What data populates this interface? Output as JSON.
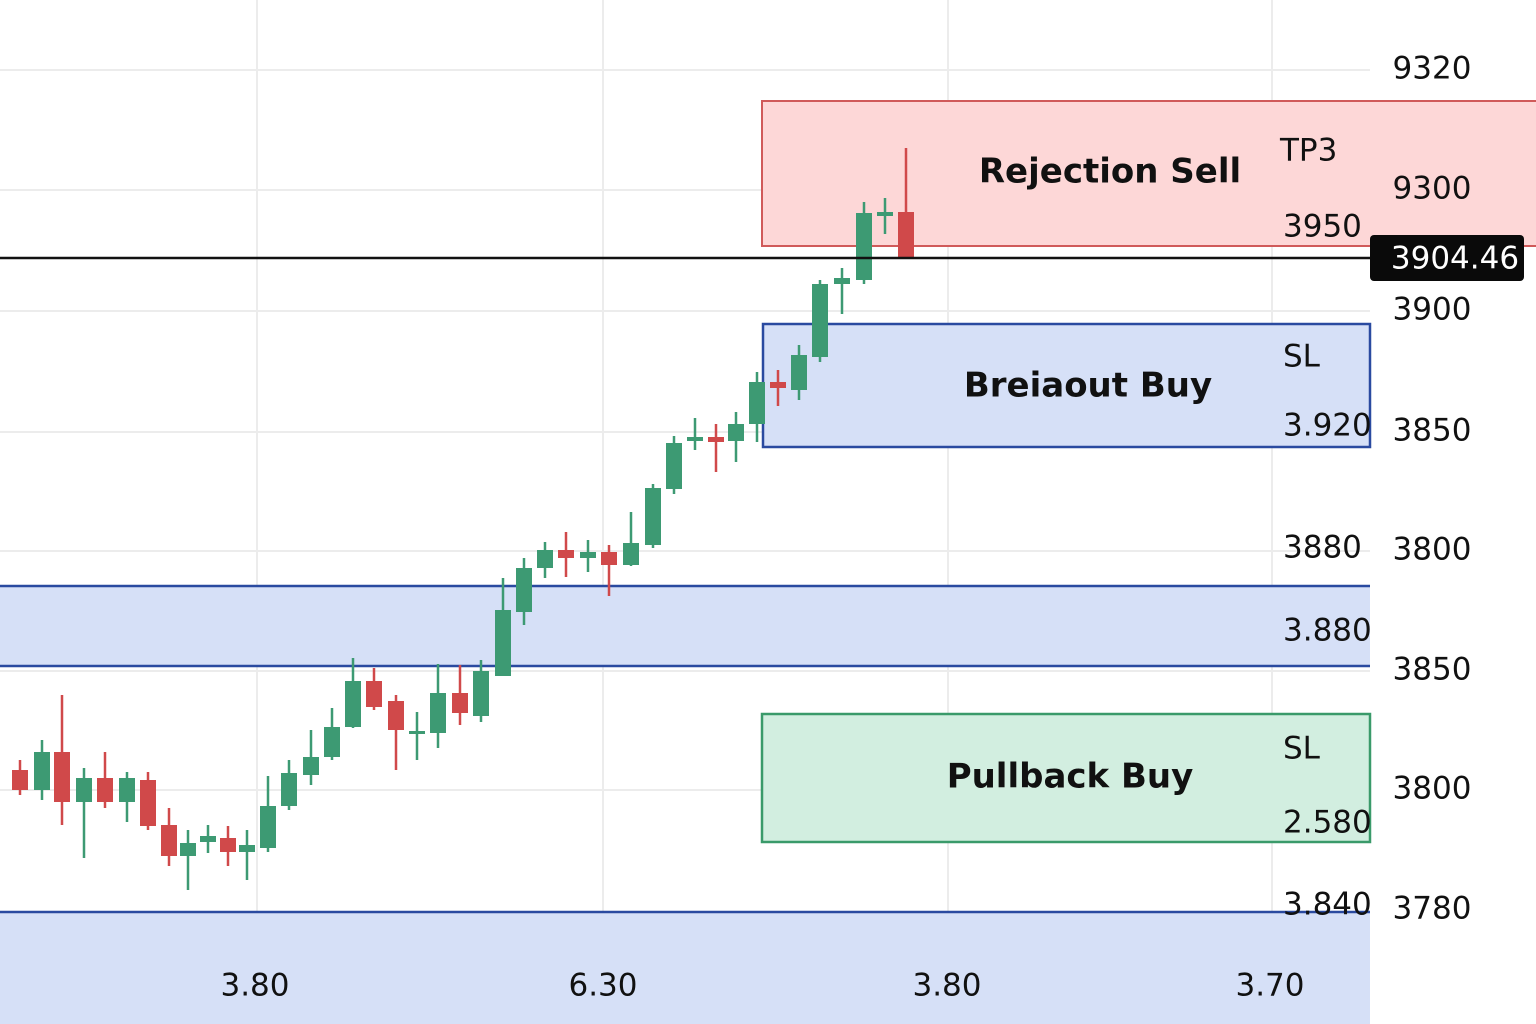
{
  "y_axis_labels": [
    "9320",
    "9300",
    "3900",
    "3850",
    "3800",
    "3850",
    "3800",
    "3780"
  ],
  "x_axis_labels": [
    "3.80",
    "6.30",
    "3.80",
    "3.70"
  ],
  "price_tag": "3904.46",
  "zones": {
    "rejection_sell": {
      "label": "Rejection Sell",
      "tag": "TP3",
      "level": "3950"
    },
    "breakout_buy": {
      "label": "Breiaout Buy",
      "tag": "SL",
      "level": "3.920"
    },
    "support_band": {
      "upper": "3880",
      "level": "3.880"
    },
    "pullback_buy": {
      "label": "Pullback Buy",
      "tag": "SL",
      "level": "2.580"
    },
    "lower_band": {
      "level": "3.840"
    }
  }
}
